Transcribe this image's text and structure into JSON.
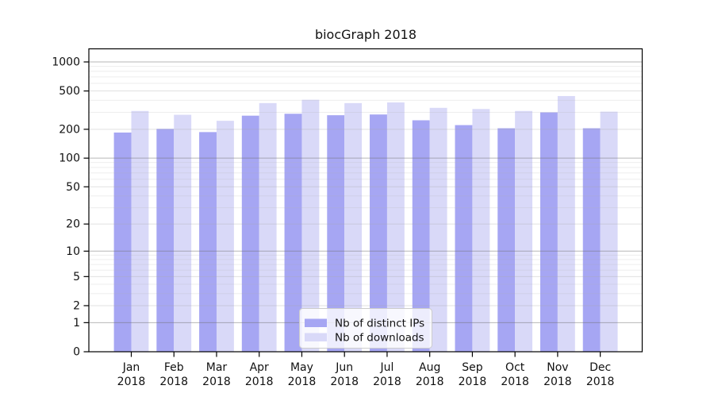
{
  "figure": {
    "title": "biocGraph 2018"
  },
  "chart_data": {
    "type": "bar",
    "title": "biocGraph 2018",
    "yscale": "log10(1+x)",
    "grid": "horizontal",
    "categories": [
      "Jan",
      "Feb",
      "Mar",
      "Apr",
      "May",
      "Jun",
      "Jul",
      "Aug",
      "Sep",
      "Oct",
      "Nov",
      "Dec"
    ],
    "xlabel_year": "2018",
    "series": [
      {
        "name": "Nb of distinct IPs",
        "color": "#a6a6f3",
        "values": [
          185,
          202,
          187,
          277,
          290,
          280,
          285,
          248,
          221,
          205,
          300,
          205
        ]
      },
      {
        "name": "Nb of downloads",
        "color": "#d9d9f8",
        "values": [
          310,
          283,
          245,
          374,
          405,
          374,
          380,
          334,
          325,
          310,
          443,
          305
        ]
      }
    ],
    "yticks": [
      0,
      1,
      2,
      5,
      10,
      20,
      50,
      100,
      200,
      500,
      1000
    ],
    "ylim": [
      0,
      1368
    ],
    "legend": {
      "position": "bottom-center",
      "labels": [
        "Nb of distinct IPs",
        "Nb of downloads"
      ]
    },
    "colors": {
      "spine": "#000000",
      "tick_label": "#111111",
      "grid_major": "#707070",
      "grid_medium": "#a8a8a8",
      "grid_minor": "#b0b0b0",
      "legend_border": "#cccccc"
    }
  }
}
